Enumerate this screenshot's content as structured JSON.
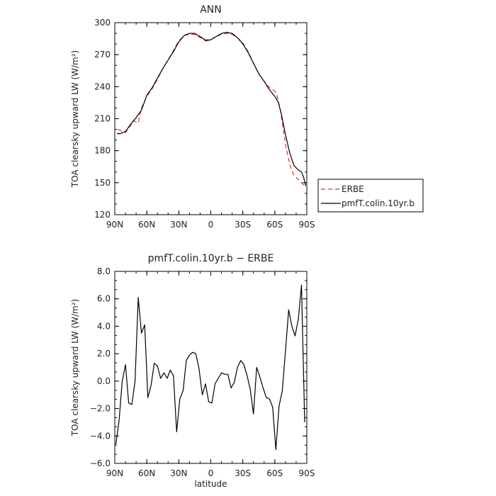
{
  "chart_data": [
    {
      "type": "line",
      "title": "ANN",
      "xlabel": "",
      "ylabel": "TOA clearsky upward LW (W/m²)",
      "ylim": [
        120,
        300
      ],
      "yticks": [
        120,
        150,
        180,
        210,
        240,
        270,
        300
      ],
      "xlim": [
        90,
        -90
      ],
      "xticks": [
        90,
        60,
        30,
        0,
        -30,
        -60,
        -90
      ],
      "xticklabels": [
        "90N",
        "60N",
        "30N",
        "0",
        "30S",
        "60S",
        "90S"
      ],
      "legend": {
        "placement": "right",
        "entries": [
          "ERBE",
          "pmfT.colin.10yr.b"
        ]
      },
      "series": [
        {
          "name": "ERBE",
          "style": "dashed",
          "color": "#e03030",
          "x": [
            87,
            80,
            75,
            72,
            68,
            65,
            60,
            55,
            50,
            45,
            40,
            35,
            30,
            25,
            20,
            15,
            10,
            5,
            0,
            -5,
            -10,
            -15,
            -20,
            -25,
            -30,
            -35,
            -40,
            -45,
            -50,
            -55,
            -60,
            -62,
            -65,
            -68,
            -70,
            -73,
            -75,
            -78,
            -80,
            -83,
            -86,
            -89
          ],
          "y": [
            200,
            197,
            204,
            208,
            206,
            220,
            231,
            238,
            247,
            257,
            265,
            274,
            283,
            288,
            289,
            289,
            286,
            284,
            284,
            287,
            289,
            290,
            289,
            286,
            281,
            273,
            262,
            252,
            245,
            239,
            236,
            232,
            219,
            200,
            186,
            172,
            164,
            157,
            155,
            152,
            149,
            146
          ]
        },
        {
          "name": "pmfT.colin.10yr.b",
          "style": "solid",
          "color": "#000000",
          "x": [
            88,
            85,
            80,
            75,
            70,
            65,
            60,
            55,
            50,
            45,
            40,
            35,
            30,
            25,
            20,
            15,
            10,
            7,
            5,
            0,
            -5,
            -10,
            -15,
            -20,
            -25,
            -30,
            -35,
            -40,
            -45,
            -50,
            -55,
            -60,
            -63,
            -66,
            -70,
            -74,
            -78,
            -82,
            -85,
            -87,
            -89
          ],
          "y": [
            196,
            196,
            198,
            205,
            211,
            218,
            232,
            239,
            248,
            257,
            265,
            273,
            282,
            288,
            290,
            290,
            287,
            285,
            283,
            284,
            287,
            290,
            291,
            290,
            286,
            280,
            272,
            262,
            252,
            245,
            237,
            231,
            226,
            215,
            195,
            178,
            166,
            162,
            160,
            155,
            147
          ]
        }
      ]
    },
    {
      "type": "line",
      "title": "pmfT.colin.10yr.b − ERBE",
      "xlabel": "latitude",
      "ylabel": "TOA clearsky upward LW (W/m²)",
      "ylim": [
        -6,
        8
      ],
      "yticks": [
        -6,
        -4,
        -2,
        0,
        2,
        4,
        6,
        8
      ],
      "yticklabels": [
        "−6.0",
        "−4.0",
        "−2.0",
        "0.0",
        "2.0",
        "4.0",
        "6.0",
        "8.0"
      ],
      "xlim": [
        90,
        -90
      ],
      "xticks": [
        90,
        60,
        30,
        0,
        -30,
        -60,
        -90
      ],
      "xticklabels": [
        "90N",
        "60N",
        "30N",
        "0",
        "30S",
        "60S",
        "90S"
      ],
      "series": [
        {
          "name": "pmfT.colin.10yr.b − ERBE",
          "style": "solid",
          "color": "#000000",
          "x": [
            89,
            86,
            83,
            80,
            77,
            74,
            71,
            68,
            65,
            62,
            59,
            56,
            53,
            50,
            47,
            44,
            41,
            38,
            35,
            32,
            29,
            26,
            23,
            20,
            17,
            14,
            11,
            8,
            5,
            2,
            -1,
            -4,
            -7,
            -10,
            -13,
            -16,
            -19,
            -22,
            -25,
            -28,
            -31,
            -34,
            -37,
            -40,
            -43,
            -46,
            -49,
            -52,
            -55,
            -58,
            -61,
            -64,
            -67,
            -70,
            -73,
            -76,
            -79,
            -82,
            -85,
            -88
          ],
          "y": [
            -4.6,
            -2.9,
            0,
            1.2,
            -1.6,
            -1.7,
            0,
            6.1,
            3.5,
            4.1,
            -1.2,
            -0.3,
            1.3,
            1.1,
            0.2,
            0.6,
            0.2,
            0.8,
            0.4,
            -3.7,
            -1.3,
            -0.7,
            1.5,
            1.9,
            2.1,
            2.0,
            0.9,
            -1.0,
            -0.2,
            -1.5,
            -1.6,
            -0.2,
            0.2,
            0.6,
            0.5,
            0.5,
            -0.5,
            -0.1,
            1.0,
            1.5,
            1.2,
            0.4,
            -0.6,
            -2.4,
            1.0,
            0.3,
            -0.5,
            -1.2,
            -1.3,
            -1.9,
            -5.0,
            -1.8,
            -0.7,
            2.2,
            5.2,
            4.0,
            3.3,
            4.5,
            7.0,
            -3.0
          ]
        }
      ]
    }
  ]
}
